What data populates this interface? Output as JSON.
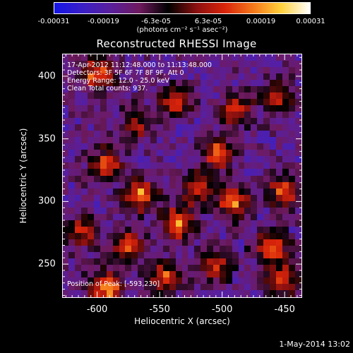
{
  "chart_data": {
    "type": "heatmap",
    "title": "Reconstructed RHESSI Image",
    "xlabel": "Heliocentric X (arcsec)",
    "ylabel": "Heliocentric Y (arcsec)",
    "xlim": [
      -628,
      -436
    ],
    "ylim": [
      223,
      418
    ],
    "xticks": [
      -600,
      -550,
      -500,
      -450
    ],
    "yticks": [
      250,
      300,
      350,
      400
    ],
    "xtick_labels": [
      "-600",
      "-550",
      "-500",
      "-450"
    ],
    "ytick_labels": [
      "250",
      "300",
      "350",
      "400"
    ],
    "colorbar": {
      "range": [
        -0.00031,
        0.00031
      ],
      "ticks": [
        -0.00031,
        -0.00019,
        -6.3e-05,
        6.3e-05,
        0.00019,
        0.00031
      ],
      "tick_labels": [
        "-0.00031",
        "-0.00019",
        "-6.3e-05",
        "6.3e-05",
        "0.00019",
        "0.00031"
      ],
      "units_label": "(photons cm⁻² s⁻¹ asec⁻²)",
      "colormap_colors": [
        "#1515e6",
        "#3b1fc6",
        "#5a1f9c",
        "#6e1a5e",
        "#000000",
        "#8b1010",
        "#d8240a",
        "#f5781a",
        "#ffd23c",
        "#ffffff"
      ]
    },
    "annotations": [
      "17-Apr-2012 11:12:48.000 to 11:13:48.000",
      "Detectors: 3F 5F 6F 7F 8F 9F, Att 0",
      "Energy Range: 12.0 - 25.0 keV",
      "Clean    Total counts: 937.",
      "Position of Peak: [-593,230]"
    ],
    "bright_sources": [
      {
        "x": -600,
        "y": 402,
        "value": 0.00026
      },
      {
        "x": -538,
        "y": 380,
        "value": 0.00022
      },
      {
        "x": -488,
        "y": 372,
        "value": 0.0002
      },
      {
        "x": -455,
        "y": 385,
        "value": 0.00018
      },
      {
        "x": -568,
        "y": 362,
        "value": 0.00016
      },
      {
        "x": -502,
        "y": 338,
        "value": 0.00024
      },
      {
        "x": -593,
        "y": 330,
        "value": 0.0002
      },
      {
        "x": -565,
        "y": 305,
        "value": 0.00028
      },
      {
        "x": -520,
        "y": 310,
        "value": 0.00019
      },
      {
        "x": -490,
        "y": 300,
        "value": 0.00026
      },
      {
        "x": -450,
        "y": 308,
        "value": 0.00022
      },
      {
        "x": -535,
        "y": 282,
        "value": 0.00029
      },
      {
        "x": -612,
        "y": 275,
        "value": 0.00018
      },
      {
        "x": -575,
        "y": 265,
        "value": 0.00021
      },
      {
        "x": -460,
        "y": 262,
        "value": 0.00025
      },
      {
        "x": -593,
        "y": 230,
        "value": 0.00031
      },
      {
        "x": -545,
        "y": 238,
        "value": 0.00022
      },
      {
        "x": -505,
        "y": 248,
        "value": 0.00017
      },
      {
        "x": -450,
        "y": 235,
        "value": 0.0002
      }
    ],
    "background_value": -0.00015,
    "grid": false
  },
  "footer": {
    "timestamp": "1-May-2014 13:02"
  }
}
